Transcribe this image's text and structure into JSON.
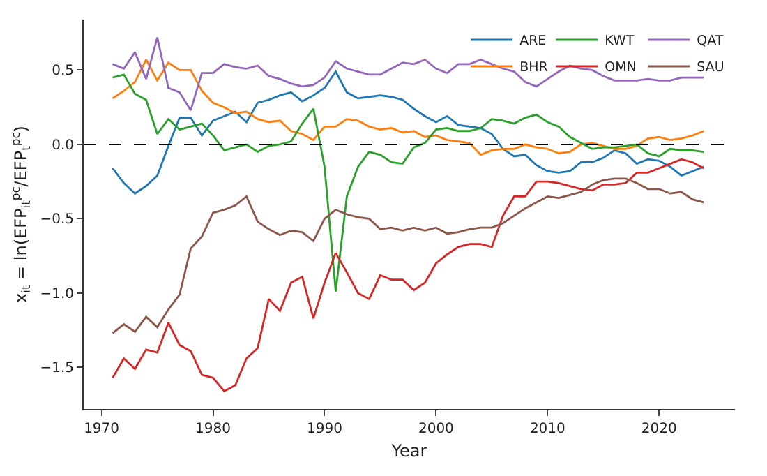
{
  "chart_data": {
    "type": "line",
    "xlabel": "Year",
    "ylabel": "x$_{it}$ = ln(EFP$_{it}$$^{pc}$/EFP$_{t}$$^{pc}$)",
    "x": [
      1971,
      1972,
      1973,
      1974,
      1975,
      1976,
      1977,
      1978,
      1979,
      1980,
      1981,
      1982,
      1983,
      1984,
      1985,
      1986,
      1987,
      1988,
      1989,
      1990,
      1991,
      1992,
      1993,
      1994,
      1995,
      1996,
      1997,
      1998,
      1999,
      2000,
      2001,
      2002,
      2003,
      2004,
      2005,
      2006,
      2007,
      2008,
      2009,
      2010,
      2011,
      2012,
      2013,
      2014,
      2015,
      2016,
      2017,
      2018,
      2019,
      2020,
      2021,
      2022,
      2023,
      2024
    ],
    "series": [
      {
        "name": "ARE",
        "color": "#1f77b4",
        "values": [
          -0.16,
          -0.26,
          -0.33,
          -0.28,
          -0.21,
          -0.01,
          0.18,
          0.18,
          0.06,
          0.16,
          0.19,
          0.22,
          0.15,
          0.28,
          0.3,
          0.33,
          0.35,
          0.29,
          0.33,
          0.38,
          0.49,
          0.35,
          0.31,
          0.32,
          0.33,
          0.32,
          0.3,
          0.24,
          0.19,
          0.15,
          0.19,
          0.13,
          0.12,
          0.11,
          0.07,
          -0.03,
          -0.08,
          -0.07,
          -0.14,
          -0.18,
          -0.19,
          -0.18,
          -0.12,
          -0.12,
          -0.09,
          -0.04,
          -0.06,
          -0.13,
          -0.1,
          -0.11,
          -0.15,
          -0.21,
          -0.18,
          -0.15
        ]
      },
      {
        "name": "BHR",
        "color": "#ff7f0e",
        "values": [
          0.31,
          0.36,
          0.42,
          0.57,
          0.43,
          0.55,
          0.5,
          0.5,
          0.36,
          0.28,
          0.25,
          0.21,
          0.22,
          0.17,
          0.15,
          0.16,
          0.09,
          0.07,
          0.03,
          0.12,
          0.12,
          0.17,
          0.16,
          0.12,
          0.1,
          0.11,
          0.08,
          0.09,
          0.05,
          0.06,
          0.03,
          0.02,
          0.01,
          -0.07,
          -0.04,
          -0.03,
          -0.03,
          0.0,
          -0.02,
          -0.03,
          -0.06,
          -0.05,
          0.0,
          0.01,
          -0.01,
          -0.03,
          -0.03,
          -0.01,
          0.04,
          0.05,
          0.03,
          0.04,
          0.06,
          0.09
        ]
      },
      {
        "name": "KWT",
        "color": "#2ca02c",
        "values": [
          0.45,
          0.47,
          0.34,
          0.3,
          0.07,
          0.17,
          0.1,
          0.12,
          0.14,
          0.06,
          -0.04,
          -0.02,
          0.0,
          -0.05,
          -0.01,
          0.0,
          0.02,
          0.14,
          0.24,
          -0.15,
          -0.99,
          -0.35,
          -0.15,
          -0.05,
          -0.07,
          -0.12,
          -0.13,
          -0.02,
          0.01,
          0.1,
          0.11,
          0.09,
          0.09,
          0.11,
          0.17,
          0.16,
          0.14,
          0.18,
          0.2,
          0.15,
          0.12,
          0.05,
          0.01,
          -0.03,
          -0.02,
          -0.02,
          -0.01,
          0.0,
          -0.06,
          -0.08,
          -0.03,
          -0.04,
          -0.04,
          -0.05
        ]
      },
      {
        "name": "OMN",
        "color": "#d62728",
        "values": [
          -1.57,
          -1.44,
          -1.51,
          -1.38,
          -1.4,
          -1.2,
          -1.35,
          -1.39,
          -1.55,
          -1.57,
          -1.66,
          -1.62,
          -1.44,
          -1.37,
          -1.04,
          -1.12,
          -0.93,
          -0.89,
          -1.17,
          -0.93,
          -0.73,
          -0.86,
          -1.0,
          -1.04,
          -0.88,
          -0.91,
          -0.91,
          -0.98,
          -0.93,
          -0.8,
          -0.74,
          -0.69,
          -0.67,
          -0.67,
          -0.69,
          -0.48,
          -0.35,
          -0.35,
          -0.25,
          -0.25,
          -0.26,
          -0.28,
          -0.3,
          -0.31,
          -0.27,
          -0.27,
          -0.26,
          -0.19,
          -0.19,
          -0.16,
          -0.13,
          -0.1,
          -0.12,
          -0.16
        ]
      },
      {
        "name": "QAT",
        "color": "#9467bd",
        "values": [
          0.54,
          0.51,
          0.62,
          0.44,
          0.72,
          0.38,
          0.35,
          0.23,
          0.48,
          0.48,
          0.54,
          0.52,
          0.51,
          0.53,
          0.46,
          0.44,
          0.41,
          0.39,
          0.4,
          0.45,
          0.56,
          0.51,
          0.49,
          0.47,
          0.47,
          0.51,
          0.55,
          0.54,
          0.57,
          0.51,
          0.48,
          0.54,
          0.54,
          0.57,
          0.54,
          0.51,
          0.49,
          0.42,
          0.39,
          0.44,
          0.49,
          0.53,
          0.51,
          0.5,
          0.46,
          0.43,
          0.43,
          0.43,
          0.44,
          0.43,
          0.43,
          0.45,
          0.45,
          0.45
        ]
      },
      {
        "name": "SAU",
        "color": "#8c564b",
        "values": [
          -1.27,
          -1.21,
          -1.26,
          -1.16,
          -1.23,
          -1.11,
          -1.01,
          -0.7,
          -0.62,
          -0.46,
          -0.44,
          -0.41,
          -0.35,
          -0.52,
          -0.57,
          -0.61,
          -0.58,
          -0.59,
          -0.65,
          -0.5,
          -0.44,
          -0.47,
          -0.49,
          -0.5,
          -0.57,
          -0.56,
          -0.58,
          -0.56,
          -0.58,
          -0.56,
          -0.6,
          -0.59,
          -0.57,
          -0.56,
          -0.56,
          -0.53,
          -0.48,
          -0.43,
          -0.39,
          -0.35,
          -0.36,
          -0.34,
          -0.32,
          -0.27,
          -0.24,
          -0.23,
          -0.23,
          -0.26,
          -0.3,
          -0.3,
          -0.33,
          -0.32,
          -0.37,
          -0.39
        ]
      }
    ],
    "xlim": [
      1968.4,
      2026.8
    ],
    "xticks": [
      1970,
      1980,
      1990,
      2000,
      2010,
      2020
    ],
    "ylim": [
      -1.78,
      0.84
    ],
    "yticks": [
      {
        "value": -1.5,
        "label": "−1.5"
      },
      {
        "value": -1,
        "label": "−1.0"
      },
      {
        "value": -0.5,
        "label": "−0.5"
      },
      {
        "value": 0,
        "label": "0.0"
      },
      {
        "value": 0.5,
        "label": "0.5"
      }
    ],
    "ref_lines": [
      {
        "axis": "y",
        "value": 0,
        "color": "#000000",
        "line_style": "dashed"
      }
    ],
    "grid": false,
    "legend": "top right",
    "line_style": "solid",
    "marker": "none"
  }
}
